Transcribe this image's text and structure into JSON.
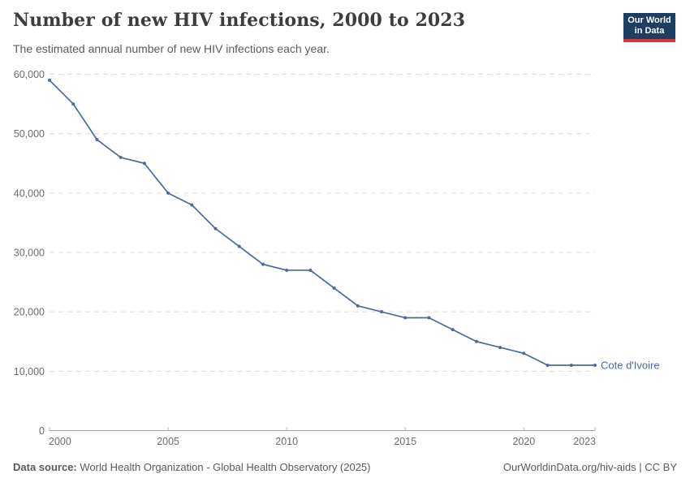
{
  "header": {
    "title": "Number of new HIV infections, 2000 to 2023",
    "subtitle": "The estimated annual number of new HIV infections each year.",
    "logo": {
      "line1": "Our World",
      "line2": "in Data",
      "bg_color": "#1d3d63",
      "accent_color": "#d03a3a"
    }
  },
  "chart_data": {
    "type": "line",
    "title": "Number of new HIV infections, 2000 to 2023",
    "x": [
      2000,
      2001,
      2002,
      2003,
      2004,
      2005,
      2006,
      2007,
      2008,
      2009,
      2010,
      2011,
      2012,
      2013,
      2014,
      2015,
      2016,
      2017,
      2018,
      2019,
      2020,
      2021,
      2022,
      2023
    ],
    "series": [
      {
        "name": "Cote d'Ivoire",
        "color": "#4C6A9C",
        "values": [
          59000,
          55000,
          49000,
          46000,
          45000,
          40000,
          38000,
          34000,
          31000,
          28000,
          27000,
          27000,
          24000,
          21000,
          20000,
          19000,
          19000,
          17000,
          15000,
          14000,
          13000,
          11000,
          11000,
          11000
        ]
      }
    ],
    "xlim": [
      2000,
      2023
    ],
    "ylim": [
      0,
      60000
    ],
    "x_ticks": [
      {
        "value": 2000,
        "label": "2000"
      },
      {
        "value": 2005,
        "label": "2005"
      },
      {
        "value": 2010,
        "label": "2010"
      },
      {
        "value": 2015,
        "label": "2015"
      },
      {
        "value": 2020,
        "label": "2020"
      },
      {
        "value": 2023,
        "label": "2023"
      }
    ],
    "y_ticks": [
      {
        "value": 0,
        "label": "0"
      },
      {
        "value": 10000,
        "label": "10,000"
      },
      {
        "value": 20000,
        "label": "20,000"
      },
      {
        "value": 30000,
        "label": "30,000"
      },
      {
        "value": 40000,
        "label": "40,000"
      },
      {
        "value": 50000,
        "label": "50,000"
      },
      {
        "value": 60000,
        "label": "60,000"
      }
    ],
    "grid": "horizontal-dashed",
    "legend_position": "end-of-line-label"
  },
  "footer": {
    "source_label": "Data source:",
    "source_text": " World Health Organization - Global Health Observatory (2025)",
    "link_text": "OurWorldinData.org/hiv-aids | CC BY"
  }
}
